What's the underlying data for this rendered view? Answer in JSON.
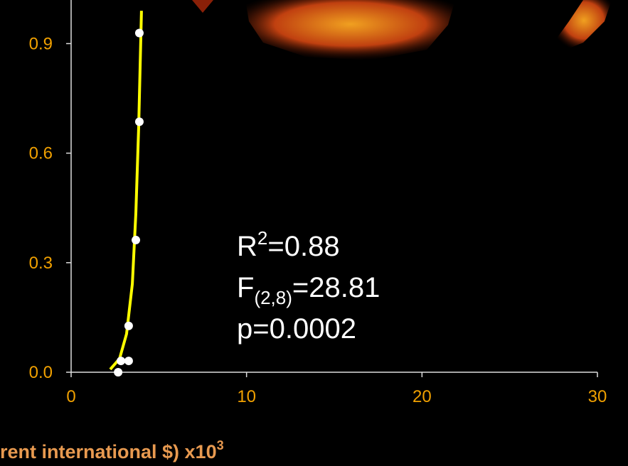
{
  "chart_data": {
    "type": "scatter",
    "x_label": "rent international $) x10",
    "x_label_sup": "3",
    "xlim": [
      0,
      30
    ],
    "xticks": [
      0,
      10,
      20,
      30
    ],
    "ylim": [
      0,
      1.0
    ],
    "yticks": [
      {
        "value": 0,
        "label": "0.0"
      },
      0.3,
      0.6,
      0.9
    ],
    "series": [
      {
        "color": "#ffffff",
        "x": [
          3.89,
          3.89,
          3.69,
          3.28,
          2.84,
          3.28,
          2.68
        ],
        "values": [
          0.929,
          0.686,
          0.362,
          0.127,
          0.031,
          0.031,
          0
        ]
      },
      {
        "color": "#ffff00",
        "line": true,
        "x": [
          2.23,
          2.76,
          3.16,
          3.49,
          3.69,
          3.85,
          4.01
        ],
        "values": [
          0.008,
          0.037,
          0.105,
          0.242,
          0.436,
          0.67,
          0.99
        ]
      }
    ],
    "annotations": [
      {
        "text": "R",
        "sup": "2",
        "rest": "=0.88"
      },
      {
        "text": "F",
        "sub": "(2,8)",
        "rest": "=28.81"
      },
      {
        "text": "p=0.0002"
      }
    ]
  }
}
